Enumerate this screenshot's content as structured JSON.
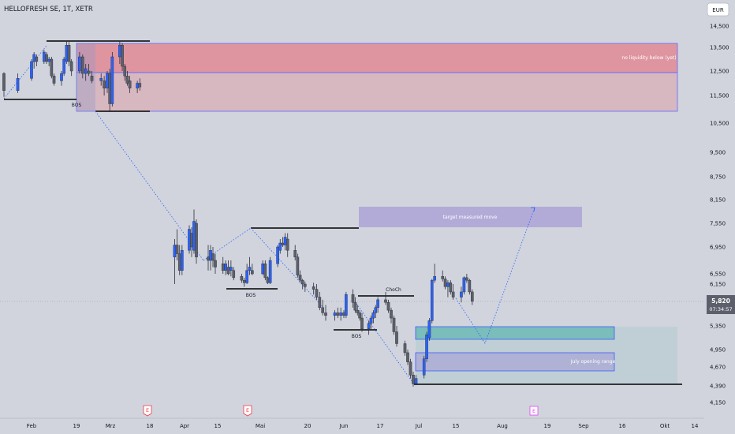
{
  "header": {
    "symbol_title": "HELLOFRESH SE, 1T, XETR",
    "currency": "EUR"
  },
  "price_tag": {
    "price": "5,820",
    "countdown": "07:34:57"
  },
  "chart_data": {
    "type": "candlestick",
    "title": "HELLOFRESH SE, 1T, XETR",
    "y_ticks": [
      "14,500",
      "13,500",
      "12,500",
      "11,500",
      "10,500",
      "9,500",
      "8,750",
      "8,150",
      "7,550",
      "6,950",
      "6,550",
      "6,150",
      "5,350",
      "4,950",
      "4,670",
      "4,390",
      "4,150"
    ],
    "x_ticks": [
      "Feb",
      "19",
      "Mrz",
      "18",
      "Apr",
      "15",
      "Mai",
      "20",
      "Jun",
      "17",
      "Jul",
      "15",
      "Aug",
      "19",
      "Sep",
      "16",
      "Okt",
      "14"
    ],
    "last_price": 5.82,
    "earnings_markers": [
      "E",
      "E",
      "E"
    ],
    "annotations": {
      "zone_top": "no liquidity below (yet)",
      "zone_target": "target measured move",
      "zone_july": "July opening range",
      "bos_1": "BOS",
      "bos_2": "BOS",
      "bos_3": "BOS",
      "choch": "ChoCh"
    },
    "colors": {
      "up": "#2962ff",
      "down": "#5d606b",
      "red_zone": "#f23645",
      "purple_zone": "#9c8fd4",
      "teal_zone": "#26a69a",
      "projection": "#2962ff"
    },
    "candles": [
      {
        "d": "Jan 30",
        "o": 12.4,
        "h": 12.45,
        "l": 11.45,
        "c": 11.7
      },
      {
        "d": "Jan 31",
        "o": 11.7,
        "h": 12.4,
        "l": 11.6,
        "c": 12.2
      },
      {
        "d": "Feb 1",
        "o": 12.2,
        "h": 13.0,
        "l": 12.1,
        "c": 12.9
      },
      {
        "d": "Feb 2",
        "o": 12.9,
        "h": 13.3,
        "l": 12.6,
        "c": 13.2
      },
      {
        "d": "Feb 3",
        "o": 13.1,
        "h": 13.2,
        "l": 12.7,
        "c": 12.9
      },
      {
        "d": "Feb 6",
        "o": 12.9,
        "h": 13.4,
        "l": 12.8,
        "c": 13.3
      },
      {
        "d": "Feb 7",
        "o": 13.2,
        "h": 13.3,
        "l": 12.8,
        "c": 12.9
      },
      {
        "d": "Feb 8",
        "o": 12.9,
        "h": 13.1,
        "l": 12.7,
        "c": 13.0
      },
      {
        "d": "Feb 9",
        "o": 13.0,
        "h": 13.1,
        "l": 12.2,
        "c": 12.3
      },
      {
        "d": "Feb 10",
        "o": 12.3,
        "h": 12.4,
        "l": 11.9,
        "c": 12.0
      },
      {
        "d": "Feb 13",
        "o": 12.1,
        "h": 12.5,
        "l": 11.9,
        "c": 12.4
      },
      {
        "d": "Feb 14",
        "o": 12.4,
        "h": 13.1,
        "l": 12.3,
        "c": 13.0
      },
      {
        "d": "Feb 15",
        "o": 12.9,
        "h": 13.8,
        "l": 12.8,
        "c": 13.6
      },
      {
        "d": "Feb 16",
        "o": 13.6,
        "h": 13.75,
        "l": 12.7,
        "c": 12.9
      },
      {
        "d": "Feb 17",
        "o": 12.9,
        "h": 13.0,
        "l": 12.3,
        "c": 12.5
      },
      {
        "d": "Feb 20",
        "o": 12.5,
        "h": 13.3,
        "l": 12.4,
        "c": 13.1
      },
      {
        "d": "Feb 21",
        "o": 13.1,
        "h": 13.2,
        "l": 12.2,
        "c": 12.4
      },
      {
        "d": "Feb 22",
        "o": 12.4,
        "h": 12.8,
        "l": 12.1,
        "c": 12.6
      },
      {
        "d": "Feb 23",
        "o": 12.5,
        "h": 12.8,
        "l": 12.3,
        "c": 12.4
      },
      {
        "d": "Feb 24",
        "o": 12.3,
        "h": 12.5,
        "l": 12.0,
        "c": 12.1
      },
      {
        "d": "Feb 27",
        "o": 12.1,
        "h": 12.4,
        "l": 11.9,
        "c": 12.2
      },
      {
        "d": "Feb 28",
        "o": 12.1,
        "h": 12.3,
        "l": 11.5,
        "c": 11.8
      },
      {
        "d": "Mar 1",
        "o": 11.8,
        "h": 12.5,
        "l": 11.6,
        "c": 12.4
      },
      {
        "d": "Mar 2",
        "o": 12.4,
        "h": 12.6,
        "l": 10.9,
        "c": 11.2
      },
      {
        "d": "Mar 3",
        "o": 11.2,
        "h": 13.3,
        "l": 11.1,
        "c": 13.1
      },
      {
        "d": "Mar 6",
        "o": 13.1,
        "h": 13.8,
        "l": 12.8,
        "c": 13.6
      },
      {
        "d": "Mar 7",
        "o": 13.6,
        "h": 13.7,
        "l": 12.5,
        "c": 12.7
      },
      {
        "d": "Mar 8",
        "o": 12.7,
        "h": 12.8,
        "l": 12.1,
        "c": 12.3
      },
      {
        "d": "Mar 9",
        "o": 12.3,
        "h": 12.5,
        "l": 11.9,
        "c": 12.0
      },
      {
        "d": "Mar 10",
        "o": 12.1,
        "h": 12.3,
        "l": 11.6,
        "c": 11.8
      },
      {
        "d": "Mar 13",
        "o": 11.8,
        "h": 12.1,
        "l": 11.6,
        "c": 12.0
      },
      {
        "d": "Mar 14",
        "o": 12.0,
        "h": 12.2,
        "l": 11.7,
        "c": 11.85
      },
      {
        "d": "Mar 28",
        "o": 6.8,
        "h": 7.15,
        "l": 6.15,
        "c": 7.0
      },
      {
        "d": "Mar 29",
        "o": 7.0,
        "h": 7.4,
        "l": 6.75,
        "c": 6.85
      },
      {
        "d": "Mar 30",
        "o": 6.85,
        "h": 7.0,
        "l": 6.5,
        "c": 6.6
      },
      {
        "d": "Mar 31",
        "o": 6.6,
        "h": 7.0,
        "l": 6.5,
        "c": 6.9
      },
      {
        "d": "Apr 3",
        "o": 6.9,
        "h": 7.5,
        "l": 6.85,
        "c": 7.4
      },
      {
        "d": "Apr 4",
        "o": 7.3,
        "h": 7.45,
        "l": 6.8,
        "c": 6.95
      },
      {
        "d": "Apr 5",
        "o": 6.9,
        "h": 7.9,
        "l": 6.85,
        "c": 7.6
      },
      {
        "d": "Apr 6",
        "o": 7.55,
        "h": 7.65,
        "l": 6.7,
        "c": 6.8
      },
      {
        "d": "Apr 11",
        "o": 6.8,
        "h": 7.0,
        "l": 6.6,
        "c": 6.75
      },
      {
        "d": "Apr 12",
        "o": 6.75,
        "h": 7.0,
        "l": 6.6,
        "c": 6.9
      },
      {
        "d": "Apr 13",
        "o": 6.85,
        "h": 6.95,
        "l": 6.65,
        "c": 6.75
      },
      {
        "d": "Apr 14",
        "o": 6.75,
        "h": 6.85,
        "l": 6.55,
        "c": 6.65
      },
      {
        "d": "Apr 17",
        "o": 6.7,
        "h": 6.8,
        "l": 6.55,
        "c": 6.6
      },
      {
        "d": "Apr 18",
        "o": 6.6,
        "h": 6.75,
        "l": 6.5,
        "c": 6.7
      },
      {
        "d": "Apr 19",
        "o": 6.65,
        "h": 6.75,
        "l": 6.5,
        "c": 6.55
      },
      {
        "d": "Apr 20",
        "o": 6.6,
        "h": 6.75,
        "l": 6.45,
        "c": 6.65
      },
      {
        "d": "Apr 21",
        "o": 6.6,
        "h": 6.65,
        "l": 6.3,
        "c": 6.4
      },
      {
        "d": "Apr 24",
        "o": 6.45,
        "h": 6.55,
        "l": 6.2,
        "c": 6.3
      },
      {
        "d": "Apr 25",
        "o": 6.3,
        "h": 6.4,
        "l": 6.1,
        "c": 6.2
      },
      {
        "d": "Apr 26",
        "o": 6.2,
        "h": 6.7,
        "l": 6.15,
        "c": 6.6
      },
      {
        "d": "Apr 27",
        "o": 6.6,
        "h": 6.8,
        "l": 6.5,
        "c": 6.65
      },
      {
        "d": "Apr 28",
        "o": 6.6,
        "h": 6.7,
        "l": 6.5,
        "c": 6.55
      },
      {
        "d": "May 2",
        "o": 6.55,
        "h": 6.75,
        "l": 6.5,
        "c": 6.7
      },
      {
        "d": "May 3",
        "o": 6.7,
        "h": 6.75,
        "l": 6.3,
        "c": 6.4
      },
      {
        "d": "May 4",
        "o": 6.4,
        "h": 6.45,
        "l": 6.15,
        "c": 6.2
      },
      {
        "d": "May 5",
        "o": 6.2,
        "h": 6.8,
        "l": 6.15,
        "c": 6.75
      },
      {
        "d": "May 8",
        "o": 6.7,
        "h": 7.0,
        "l": 6.65,
        "c": 6.95
      },
      {
        "d": "May 9",
        "o": 6.9,
        "h": 7.15,
        "l": 6.85,
        "c": 7.05
      },
      {
        "d": "May 10",
        "o": 7.05,
        "h": 7.2,
        "l": 6.95,
        "c": 7.0
      },
      {
        "d": "May 11",
        "o": 7.0,
        "h": 7.3,
        "l": 6.9,
        "c": 7.2
      },
      {
        "d": "May 12",
        "o": 7.15,
        "h": 7.3,
        "l": 6.8,
        "c": 6.9
      },
      {
        "d": "May 15",
        "o": 6.9,
        "h": 7.0,
        "l": 6.75,
        "c": 6.8
      },
      {
        "d": "May 16",
        "o": 6.8,
        "h": 6.85,
        "l": 6.4,
        "c": 6.5
      },
      {
        "d": "May 17",
        "o": 6.5,
        "h": 6.6,
        "l": 6.2,
        "c": 6.3
      },
      {
        "d": "May 18",
        "o": 6.3,
        "h": 6.35,
        "l": 6.05,
        "c": 6.15
      },
      {
        "d": "May 19",
        "o": 6.15,
        "h": 6.25,
        "l": 6.0,
        "c": 6.1
      },
      {
        "d": "May 22",
        "o": 6.1,
        "h": 6.2,
        "l": 5.95,
        "c": 6.05
      },
      {
        "d": "May 23",
        "o": 6.05,
        "h": 6.15,
        "l": 5.85,
        "c": 5.9
      },
      {
        "d": "May 24",
        "o": 5.9,
        "h": 6.0,
        "l": 5.65,
        "c": 5.7
      },
      {
        "d": "May 25",
        "o": 5.7,
        "h": 5.85,
        "l": 5.55,
        "c": 5.6
      },
      {
        "d": "May 26",
        "o": 5.6,
        "h": 5.75,
        "l": 5.45,
        "c": 5.55
      },
      {
        "d": "May 29",
        "o": 5.55,
        "h": 5.65,
        "l": 5.45,
        "c": 5.6
      },
      {
        "d": "May 30",
        "o": 5.6,
        "h": 5.7,
        "l": 5.5,
        "c": 5.55
      },
      {
        "d": "May 31",
        "o": 5.55,
        "h": 5.7,
        "l": 5.45,
        "c": 5.6
      },
      {
        "d": "Jun 1",
        "o": 5.6,
        "h": 5.65,
        "l": 5.5,
        "c": 5.55
      },
      {
        "d": "Jun 2",
        "o": 5.55,
        "h": 6.0,
        "l": 5.5,
        "c": 5.95
      },
      {
        "d": "Jun 5",
        "o": 5.95,
        "h": 6.05,
        "l": 5.7,
        "c": 5.8
      },
      {
        "d": "Jun 6",
        "o": 5.8,
        "h": 5.9,
        "l": 5.6,
        "c": 5.65
      },
      {
        "d": "Jun 7",
        "o": 5.65,
        "h": 5.75,
        "l": 5.55,
        "c": 5.6
      },
      {
        "d": "Jun 8",
        "o": 5.6,
        "h": 5.65,
        "l": 5.45,
        "c": 5.5
      },
      {
        "d": "Jun 9",
        "o": 5.5,
        "h": 5.6,
        "l": 5.25,
        "c": 5.3
      },
      {
        "d": "Jun 12",
        "o": 5.3,
        "h": 5.45,
        "l": 5.2,
        "c": 5.4
      },
      {
        "d": "Jun 13",
        "o": 5.4,
        "h": 5.55,
        "l": 5.3,
        "c": 5.5
      },
      {
        "d": "Jun 14",
        "o": 5.5,
        "h": 5.65,
        "l": 5.4,
        "c": 5.6
      },
      {
        "d": "Jun 15",
        "o": 5.6,
        "h": 5.75,
        "l": 5.5,
        "c": 5.7
      },
      {
        "d": "Jun 16",
        "o": 5.7,
        "h": 5.9,
        "l": 5.6,
        "c": 5.85
      },
      {
        "d": "Jun 19",
        "o": 5.85,
        "h": 6.0,
        "l": 5.75,
        "c": 5.8
      },
      {
        "d": "Jun 20",
        "o": 5.8,
        "h": 5.85,
        "l": 5.6,
        "c": 5.65
      },
      {
        "d": "Jun 21",
        "o": 5.65,
        "h": 5.7,
        "l": 5.4,
        "c": 5.5
      },
      {
        "d": "Jun 22",
        "o": 5.5,
        "h": 5.55,
        "l": 5.2,
        "c": 5.25
      },
      {
        "d": "Jun 23",
        "o": 5.25,
        "h": 5.35,
        "l": 5.0,
        "c": 5.05
      },
      {
        "d": "Jun 26",
        "o": 5.05,
        "h": 5.1,
        "l": 4.85,
        "c": 4.9
      },
      {
        "d": "Jun 27",
        "o": 4.9,
        "h": 4.95,
        "l": 4.7,
        "c": 4.75
      },
      {
        "d": "Jun 28",
        "o": 4.75,
        "h": 4.8,
        "l": 4.5,
        "c": 4.55
      },
      {
        "d": "Jun 29",
        "o": 4.55,
        "h": 4.6,
        "l": 4.38,
        "c": 4.42
      },
      {
        "d": "Jun 30",
        "o": 4.42,
        "h": 4.55,
        "l": 4.4,
        "c": 4.5
      },
      {
        "d": "Jul 3",
        "o": 4.55,
        "h": 4.85,
        "l": 4.5,
        "c": 4.8
      },
      {
        "d": "Jul 4",
        "o": 4.8,
        "h": 5.25,
        "l": 4.75,
        "c": 5.2
      },
      {
        "d": "Jul 5",
        "o": 5.15,
        "h": 5.5,
        "l": 5.1,
        "c": 5.45
      },
      {
        "d": "Jul 6",
        "o": 5.45,
        "h": 6.35,
        "l": 5.4,
        "c": 6.3
      },
      {
        "d": "Jul 7",
        "o": 6.3,
        "h": 6.7,
        "l": 6.2,
        "c": 6.45
      },
      {
        "d": "Jul 10",
        "o": 6.45,
        "h": 6.6,
        "l": 6.25,
        "c": 6.35
      },
      {
        "d": "Jul 11",
        "o": 6.35,
        "h": 6.45,
        "l": 6.05,
        "c": 6.1
      },
      {
        "d": "Jul 12",
        "o": 6.1,
        "h": 6.3,
        "l": 5.9,
        "c": 6.2
      },
      {
        "d": "Jul 13",
        "o": 6.2,
        "h": 6.3,
        "l": 5.95,
        "c": 6.0
      },
      {
        "d": "Jul 14",
        "o": 6.0,
        "h": 6.15,
        "l": 5.85,
        "c": 5.9
      },
      {
        "d": "Jul 17",
        "o": 5.9,
        "h": 6.1,
        "l": 5.8,
        "c": 6.0
      },
      {
        "d": "Jul 18",
        "o": 6.0,
        "h": 6.45,
        "l": 5.95,
        "c": 6.4
      },
      {
        "d": "Jul 19",
        "o": 6.4,
        "h": 6.55,
        "l": 6.2,
        "c": 6.3
      },
      {
        "d": "Jul 20",
        "o": 6.3,
        "h": 6.35,
        "l": 5.95,
        "c": 6.0
      },
      {
        "d": "Jul 21",
        "o": 6.0,
        "h": 6.05,
        "l": 5.75,
        "c": 5.82
      }
    ]
  }
}
